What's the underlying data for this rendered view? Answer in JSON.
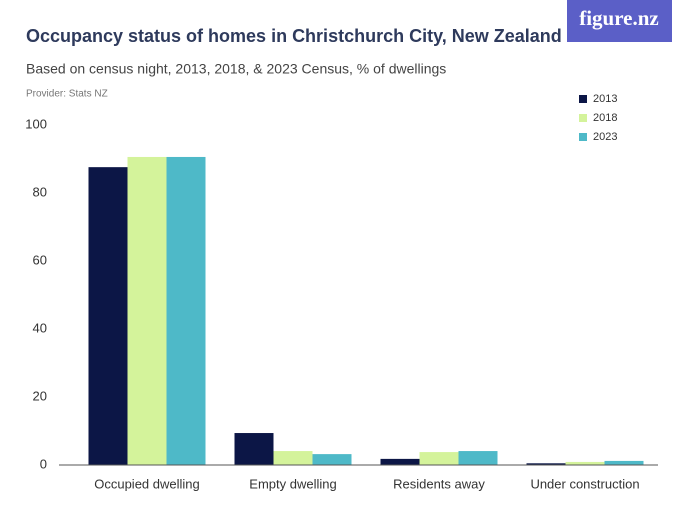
{
  "logo": "figure.nz",
  "chart_data": {
    "type": "bar",
    "title": "Occupancy status of homes in Christchurch City, New Zealand",
    "subtitle": "Based on census night, 2013, 2018, & 2023 Census, % of dwellings",
    "source": "Provider: Stats NZ",
    "categories": [
      "Occupied dwelling",
      "Empty dwelling",
      "Residents away",
      "Under construction"
    ],
    "series": [
      {
        "name": "2013",
        "color": "#0c1646",
        "values": [
          87.6,
          9.4,
          1.8,
          0.5
        ]
      },
      {
        "name": "2018",
        "color": "#d4f39b",
        "values": [
          90.6,
          4.1,
          3.8,
          0.9
        ]
      },
      {
        "name": "2023",
        "color": "#4eb9c8",
        "values": [
          90.6,
          3.2,
          4.1,
          1.2
        ]
      }
    ],
    "ylim": [
      0,
      100
    ],
    "yticks": [
      0,
      20,
      40,
      60,
      80,
      100
    ],
    "grid": false,
    "legend": "top-right"
  }
}
